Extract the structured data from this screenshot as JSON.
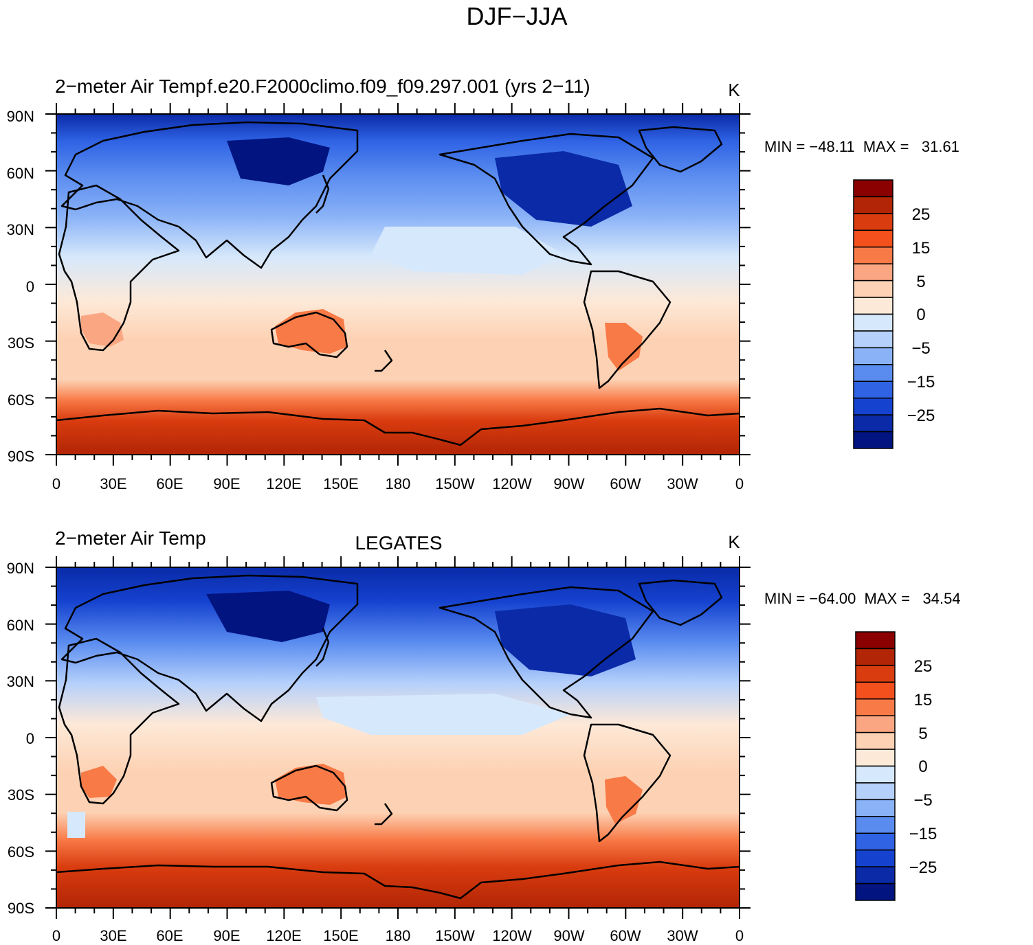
{
  "title": "DJF−JJA",
  "panels": [
    {
      "id": "model",
      "left_title": "2−meter Air Temp",
      "center_title": "f.e20.F2000climo.f09_f09.297.001 (yrs 2−11)",
      "units": "K",
      "stats": "MIN = −48.11  MAX =   31.61",
      "min": -48.11,
      "max": 31.61
    },
    {
      "id": "obs",
      "left_title": "2−meter Air Temp",
      "center_title": "LEGATES",
      "units": "K",
      "stats": "MIN = −64.00  MAX =   34.54",
      "min": -64.0,
      "max": 34.54
    }
  ],
  "axes": {
    "lat_labels": [
      "90N",
      "60N",
      "30N",
      "0",
      "30S",
      "60S",
      "90S"
    ],
    "lon_labels": [
      "0",
      "30E",
      "60E",
      "90E",
      "120E",
      "150E",
      "180",
      "150W",
      "120W",
      "90W",
      "60W",
      "30W",
      "0"
    ]
  },
  "colorbar": {
    "tick_labels": [
      "25",
      "15",
      "5",
      "0",
      "−5",
      "−15",
      "−25"
    ],
    "colors": [
      "#8b0000",
      "#b22506",
      "#d93c0f",
      "#f4501e",
      "#f87a47",
      "#fba682",
      "#fdd2b4",
      "#fde9d8",
      "#d6e8fb",
      "#b5d0fb",
      "#8ab2f7",
      "#5a8cf0",
      "#2f63e4",
      "#1542cf",
      "#0a2aa8",
      "#02147f"
    ]
  },
  "colors": {
    "coast": "#000000",
    "cold": "#0d2fa8",
    "warm": "#d93c0f"
  }
}
